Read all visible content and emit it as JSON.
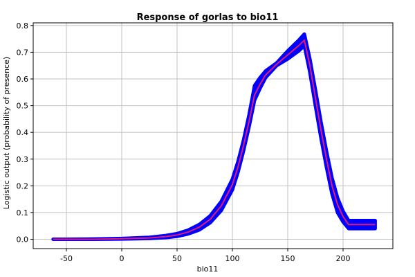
{
  "chart_data": {
    "type": "line",
    "title": "Response of gorlas to bio11",
    "xlabel": "bio11",
    "ylabel": "Logistic output (probability of presence)",
    "xlim": [
      -80,
      245
    ],
    "ylim": [
      -0.035,
      0.81
    ],
    "xticks": [
      -50,
      0,
      50,
      100,
      150,
      200
    ],
    "yticks": [
      0.0,
      0.1,
      0.2,
      0.3,
      0.4,
      0.5,
      0.6,
      0.7,
      0.8
    ],
    "ytick_labels": [
      "0.0",
      "0.1",
      "0.2",
      "0.3",
      "0.4",
      "0.5",
      "0.6",
      "0.7",
      "0.8"
    ],
    "grid": true,
    "series": [
      {
        "role": "mean",
        "color": "#e8196e",
        "x": [
          -62,
          -50,
          -25,
          0,
          25,
          40,
          50,
          60,
          70,
          80,
          90,
          100,
          105,
          110,
          115,
          118,
          120,
          125,
          130,
          140,
          150,
          160,
          165,
          170,
          175,
          180,
          185,
          190,
          195,
          200,
          205,
          215,
          229
        ],
        "y": [
          0.0,
          0.0,
          0.0,
          0.002,
          0.005,
          0.01,
          0.016,
          0.027,
          0.045,
          0.075,
          0.125,
          0.205,
          0.27,
          0.35,
          0.44,
          0.5,
          0.54,
          0.58,
          0.615,
          0.655,
          0.69,
          0.725,
          0.745,
          0.65,
          0.53,
          0.41,
          0.3,
          0.2,
          0.13,
          0.085,
          0.055,
          0.055,
          0.055
        ]
      },
      {
        "role": "band",
        "color": "#0000ff",
        "x": [
          -62,
          -50,
          -25,
          0,
          25,
          40,
          50,
          60,
          70,
          80,
          90,
          100,
          105,
          110,
          115,
          118,
          120,
          125,
          130,
          140,
          150,
          160,
          165,
          170,
          175,
          180,
          185,
          190,
          195,
          200,
          205,
          215,
          229
        ],
        "lower": [
          0.0,
          0.0,
          0.0,
          0.001,
          0.003,
          0.006,
          0.011,
          0.02,
          0.035,
          0.062,
          0.108,
          0.185,
          0.25,
          0.33,
          0.42,
          0.48,
          0.52,
          0.565,
          0.605,
          0.65,
          0.675,
          0.705,
          0.725,
          0.625,
          0.5,
          0.38,
          0.27,
          0.17,
          0.1,
          0.065,
          0.04,
          0.04,
          0.04
        ],
        "upper": [
          0.0,
          0.0,
          0.001,
          0.003,
          0.007,
          0.014,
          0.021,
          0.034,
          0.055,
          0.088,
          0.142,
          0.225,
          0.29,
          0.37,
          0.465,
          0.53,
          0.575,
          0.605,
          0.63,
          0.66,
          0.705,
          0.745,
          0.768,
          0.675,
          0.56,
          0.44,
          0.33,
          0.23,
          0.155,
          0.105,
          0.07,
          0.07,
          0.07
        ]
      }
    ]
  }
}
